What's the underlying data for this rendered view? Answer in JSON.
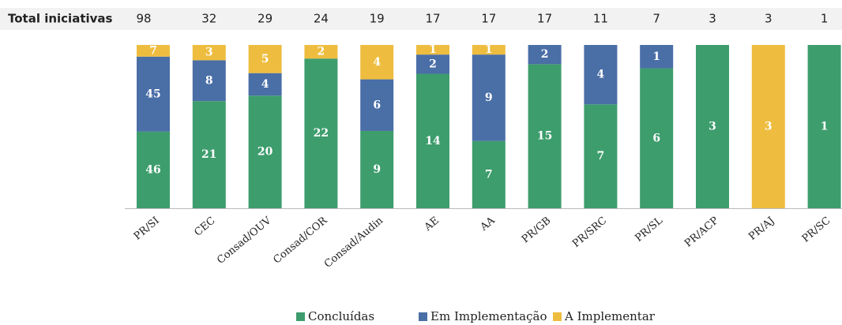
{
  "chart_data": {
    "type": "stacked_bar_100",
    "totals_label": "Total iniciativas",
    "totals": [
      98,
      32,
      29,
      24,
      19,
      17,
      17,
      17,
      11,
      7,
      3,
      3,
      1
    ],
    "categories": [
      "PR/SI",
      "CEC",
      "Consad/OUV",
      "Consad/COR",
      "Consad/Audin",
      "AE",
      "AA",
      "PR/GB",
      "PR/SRC",
      "PR/SL",
      "PR/ACP",
      "PR/AJ",
      "PR/SC"
    ],
    "series": [
      {
        "name": "Concluídas",
        "color": "#3d9d6d",
        "values": [
          46,
          21,
          20,
          22,
          9,
          14,
          7,
          15,
          7,
          6,
          3,
          null,
          1
        ]
      },
      {
        "name": "Em Implementação",
        "color": "#4a6ea6",
        "values": [
          45,
          8,
          4,
          null,
          6,
          2,
          9,
          2,
          4,
          1,
          null,
          null,
          null
        ]
      },
      {
        "name": "A Implementar",
        "color": "#eebd3f",
        "values": [
          7,
          3,
          5,
          2,
          4,
          1,
          1,
          null,
          null,
          null,
          null,
          3,
          null
        ]
      }
    ]
  }
}
